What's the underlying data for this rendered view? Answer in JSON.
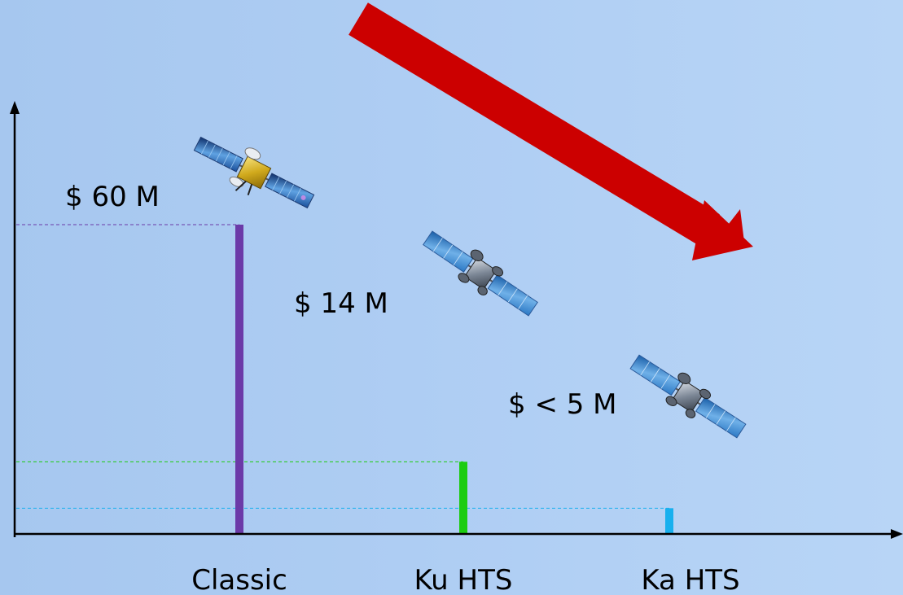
{
  "chart_data": {
    "type": "bar",
    "categories": [
      "Classic",
      "Ku HTS",
      "Ka HTS"
    ],
    "values": [
      60,
      14,
      5
    ],
    "value_labels": [
      "$ 60 M",
      "$ 14 M",
      "$ < 5 M"
    ],
    "title": "",
    "xlabel": "",
    "ylabel": "",
    "grid": false,
    "colors": {
      "bars": [
        "#6b3aa8",
        "#1ccc10",
        "#18b0ee"
      ],
      "trend_arrow": "#cc0000",
      "axis": "#000000"
    },
    "decorations": {
      "trend_arrow": "down-right",
      "satellite_icons": [
        "satellite-icon",
        "satellite-icon",
        "satellite-icon"
      ]
    }
  }
}
